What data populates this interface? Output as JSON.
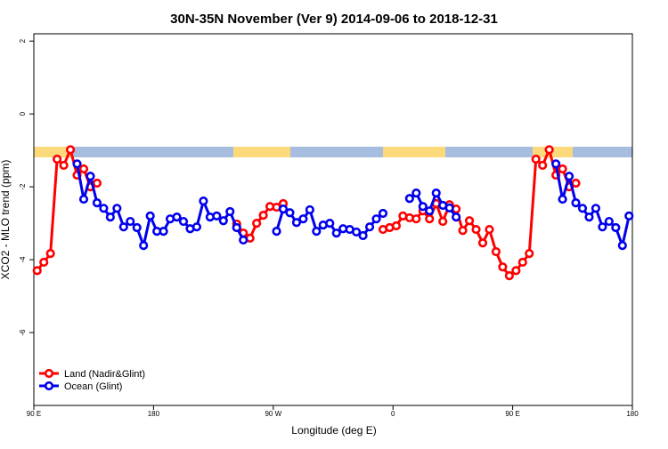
{
  "chart_data": {
    "type": "line",
    "title": "30N-35N November (Ver 9)   2014-09-06 to 2018-12-31",
    "x_label": "Longitude (deg E)",
    "y_label": "XCO2 - MLO trend (ppm)",
    "xlim": [
      90,
      540
    ],
    "ylim": [
      -8,
      2.2
    ],
    "xticks": [
      {
        "value": 90,
        "label": "90 E"
      },
      180,
      {
        "value": 270,
        "label": "90 W"
      },
      {
        "value": 360,
        "label": "0"
      },
      {
        "value": 450,
        "label": "90 E"
      },
      {
        "value": 540,
        "label": "180"
      }
    ],
    "yticks": [
      -6,
      -4,
      -2,
      0,
      2
    ],
    "legend": "bottom-left",
    "x": [
      92.5,
      97.5,
      102.5,
      107.5,
      112.5,
      117.5,
      122.5,
      127.5,
      132.5,
      137.5,
      142.5,
      147.5,
      152.5,
      157.5,
      162.5,
      167.5,
      172.5,
      177.5,
      182.5,
      187.5,
      192.5,
      197.5,
      202.5,
      207.5,
      212.5,
      217.5,
      222.5,
      227.5,
      232.5,
      237.5,
      242.5,
      247.5,
      252.5,
      257.5,
      262.5,
      267.5,
      272.5,
      277.5,
      282.5,
      287.5,
      292.5,
      297.5,
      302.5,
      307.5,
      312.5,
      317.5,
      322.5,
      327.5,
      332.5,
      337.5,
      342.5,
      347.5,
      352.5,
      357.5,
      362.5,
      367.5,
      372.5,
      377.5,
      382.5,
      387.5,
      392.5,
      397.5,
      402.5,
      407.5,
      412.5,
      417.5,
      422.5,
      427.5,
      432.5,
      437.5,
      442.5,
      447.5,
      452.5,
      457.5,
      462.5,
      467.5,
      472.5,
      477.5,
      482.5,
      487.5,
      492.5,
      497.5,
      502.5,
      507.5,
      512.5,
      517.5,
      522.5,
      527.5,
      532.5,
      537.5
    ],
    "series": [
      {
        "name": "Land (Nadir&Glint)",
        "color": "#ff0000",
        "values": [
          -4.3,
          -4.07,
          -3.83,
          -1.24,
          -1.41,
          -0.98,
          -1.68,
          -1.51,
          -2.0,
          -1.9,
          null,
          null,
          null,
          null,
          null,
          null,
          null,
          null,
          null,
          null,
          null,
          null,
          null,
          null,
          null,
          null,
          null,
          null,
          null,
          null,
          -3.02,
          -3.27,
          -3.41,
          -3.0,
          -2.78,
          -2.54,
          -2.56,
          -2.46,
          null,
          null,
          null,
          null,
          null,
          null,
          null,
          null,
          null,
          null,
          null,
          null,
          null,
          null,
          -3.17,
          -3.12,
          -3.07,
          -2.8,
          -2.85,
          -2.88,
          -2.66,
          -2.88,
          -2.46,
          -2.95,
          -2.49,
          -2.61,
          -3.2,
          -2.93,
          -3.17,
          -3.54,
          -3.17,
          -3.78,
          -4.2,
          -4.44,
          -4.3,
          -4.07,
          -3.83,
          -1.24,
          -1.41,
          -0.98,
          -1.68,
          -1.51,
          -2.0,
          -1.9,
          null,
          null,
          null,
          null,
          null,
          null,
          null,
          null
        ]
      },
      {
        "name": "Ocean (Glint)",
        "color": "#0000ee",
        "values": [
          null,
          null,
          null,
          null,
          null,
          null,
          -1.37,
          -2.34,
          -1.71,
          -2.44,
          -2.59,
          -2.83,
          -2.59,
          -3.1,
          -2.95,
          -3.12,
          -3.61,
          -2.8,
          -3.22,
          -3.22,
          -2.88,
          -2.83,
          -2.95,
          -3.15,
          -3.1,
          -2.39,
          -2.83,
          -2.8,
          -2.93,
          -2.68,
          -3.12,
          -3.46,
          null,
          null,
          null,
          null,
          -3.22,
          -2.61,
          -2.71,
          -2.98,
          -2.88,
          -2.63,
          -3.22,
          -3.05,
          -3.0,
          -3.27,
          -3.15,
          -3.17,
          -3.24,
          -3.34,
          -3.1,
          -2.88,
          -2.73,
          null,
          null,
          null,
          -2.32,
          -2.17,
          -2.54,
          -2.66,
          -2.17,
          -2.51,
          -2.58,
          -2.83,
          null,
          null,
          null,
          null,
          null,
          null,
          null,
          null,
          null,
          null,
          null,
          null,
          null,
          null,
          -1.37,
          -2.34,
          -1.71,
          -2.44,
          -2.59,
          -2.83,
          -2.59,
          -3.1,
          -2.95,
          -3.12,
          -3.61,
          -2.8
        ]
      }
    ]
  }
}
